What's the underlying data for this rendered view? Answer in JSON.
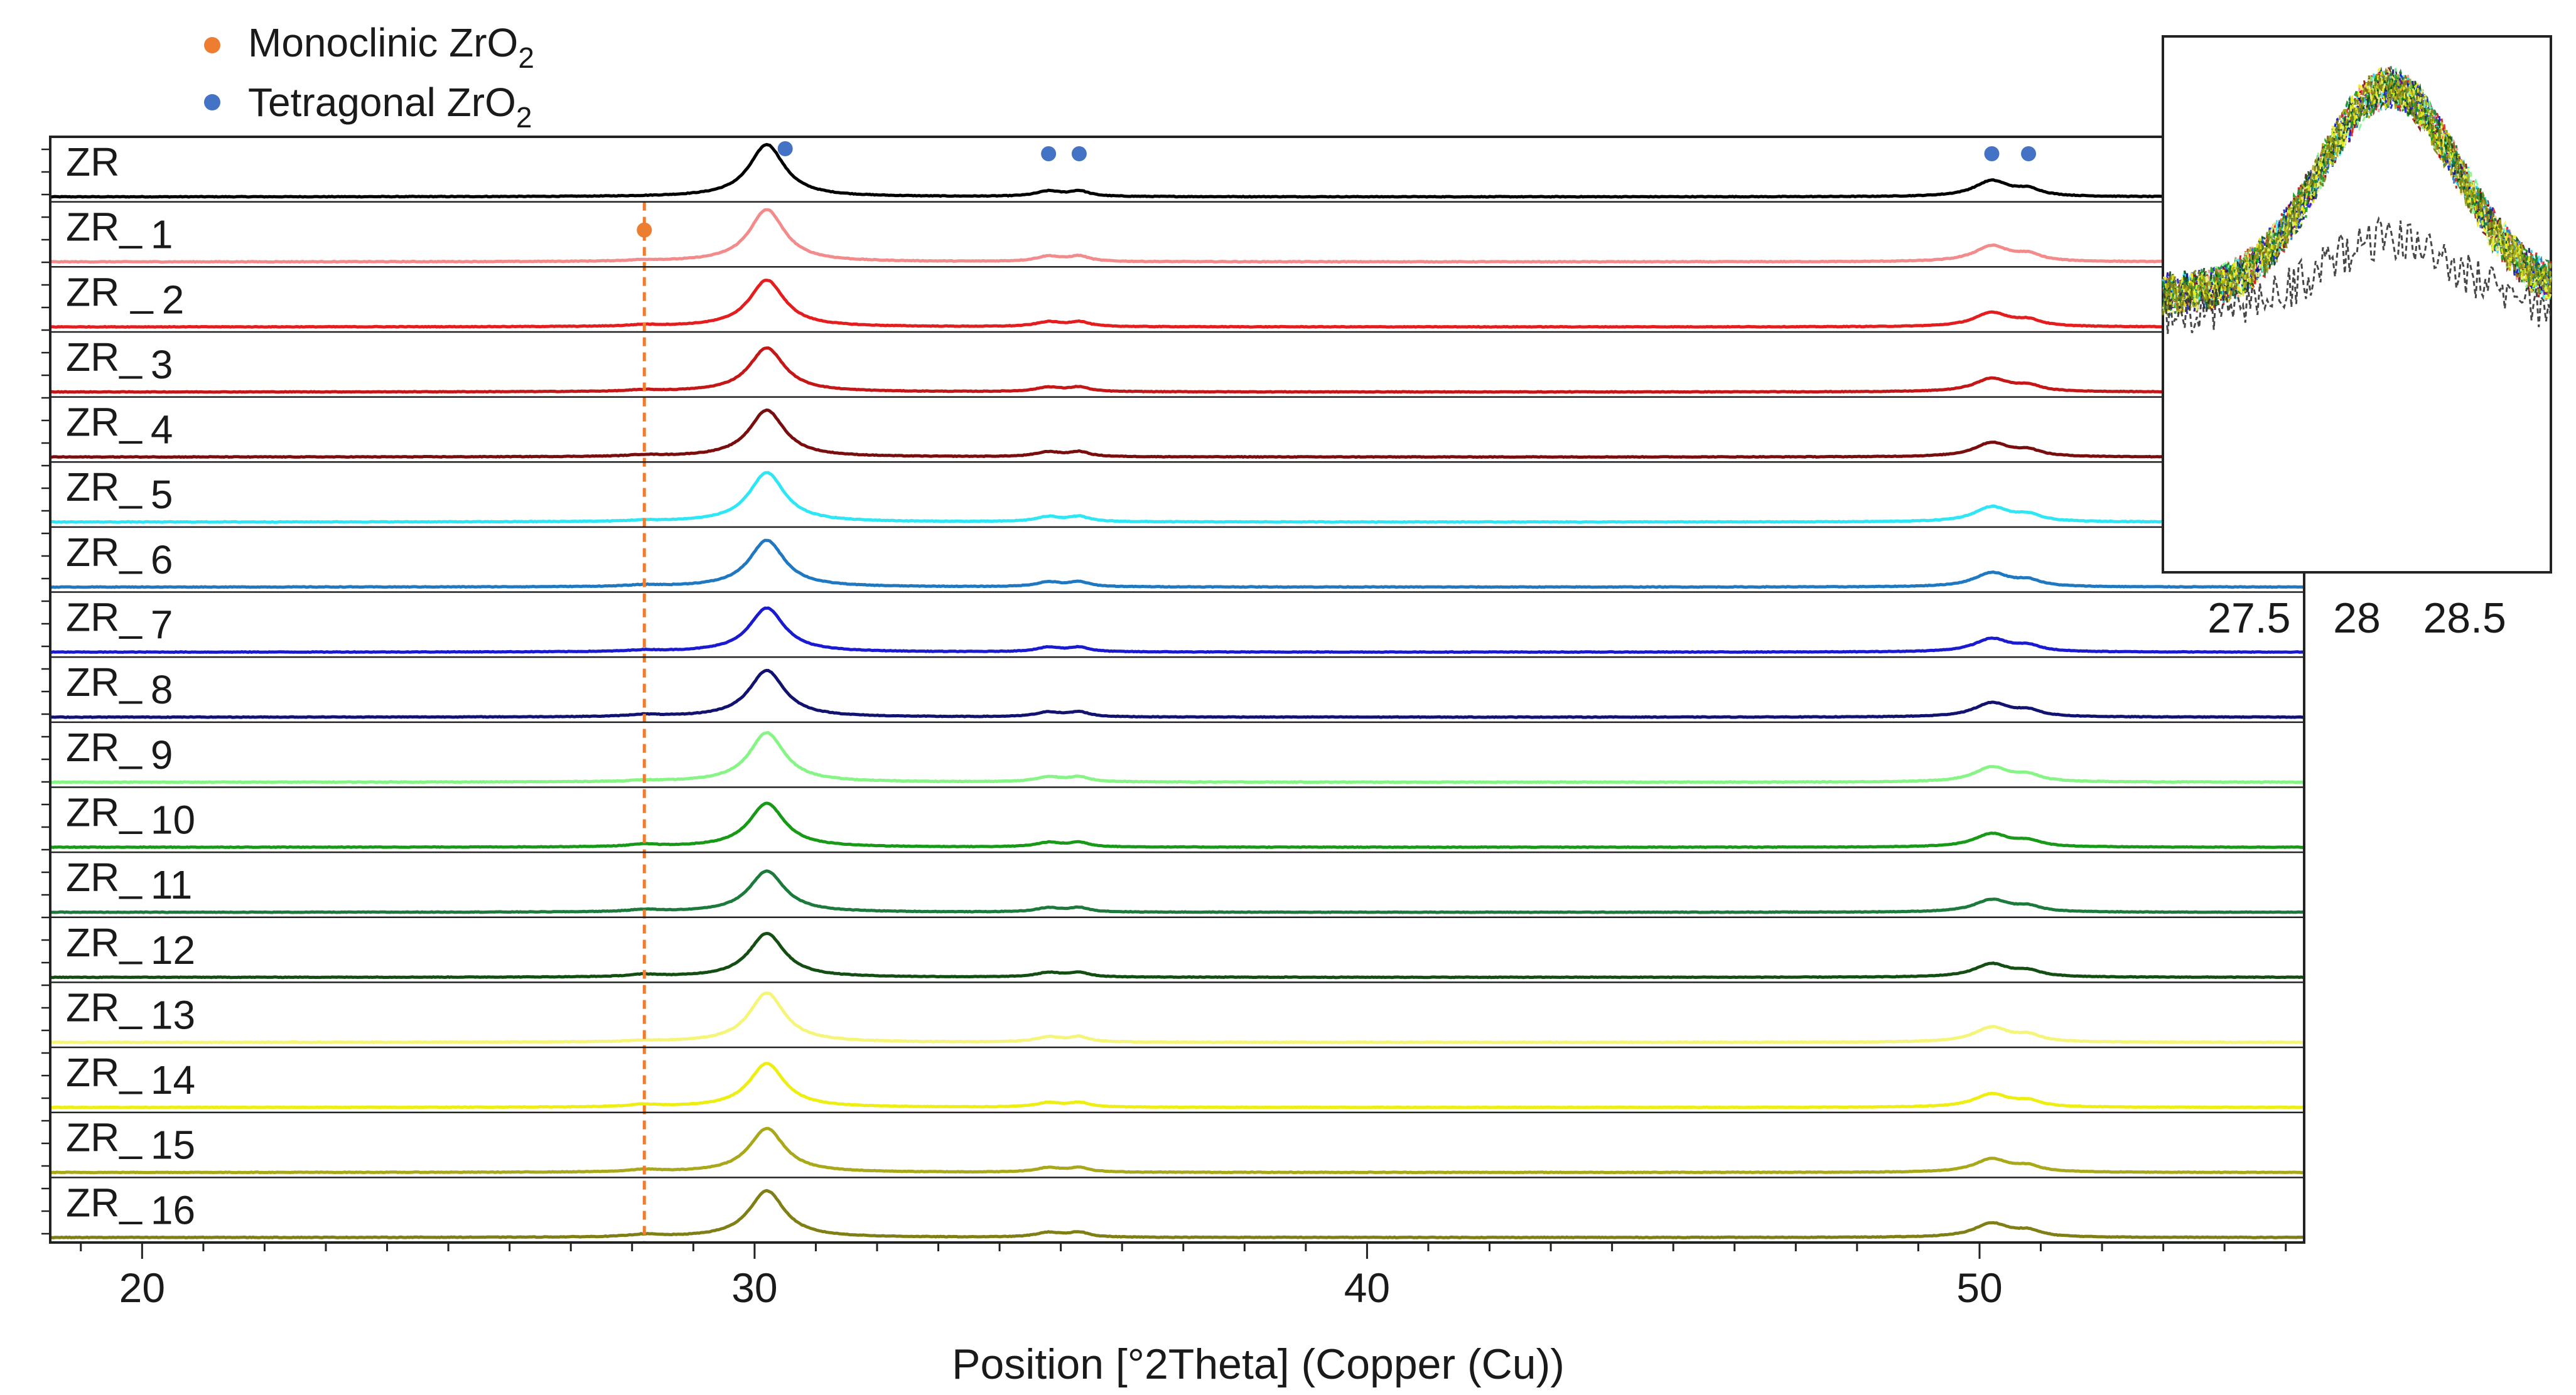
{
  "chart_data": [
    {
      "type": "line",
      "subtype": "stacked-xrd-patterns",
      "title": "",
      "xlabel": "Position [°2Theta] (Copper (Cu))",
      "ylabel": "",
      "xlim": [
        18.5,
        55.3
      ],
      "x_ticks": [
        20,
        30,
        40,
        50
      ],
      "x_tick_labels": [
        "20",
        "30",
        "40",
        "50"
      ],
      "legend": {
        "position": "top-left",
        "entries": [
          {
            "name": "Monoclinic ZrO",
            "subscript": "2",
            "color": "#ED7D31"
          },
          {
            "name": "Tetragonal ZrO",
            "subscript": "2",
            "color": "#4472C4"
          }
        ]
      },
      "peaks_two_theta": [
        30.2,
        34.8,
        35.3,
        50.2,
        50.8
      ],
      "peak_relative_heights": [
        1.0,
        0.1,
        0.1,
        0.3,
        0.12
      ],
      "monoclinic_reference_line": 28.2,
      "tetragonal_markers": [
        {
          "sample": "ZR",
          "x": 30.5
        },
        {
          "sample": "ZR",
          "x": 34.8
        },
        {
          "sample": "ZR",
          "x": 35.3
        },
        {
          "sample": "ZR",
          "x": 50.2
        },
        {
          "sample": "ZR",
          "x": 50.8
        }
      ],
      "monoclinic_markers": [
        {
          "sample": "ZR_ 1",
          "x": 28.2
        }
      ],
      "series": [
        {
          "name": "ZR",
          "label_main": "ZR",
          "label_num": "",
          "color": "#000000",
          "peak_height": 0.95,
          "mono": 0.0
        },
        {
          "name": "ZR_ 1",
          "label_main": "ZR_",
          "label_num": "1",
          "color": "#F28B8B",
          "peak_height": 0.95,
          "mono": 0.02
        },
        {
          "name": "ZR _2",
          "label_main": "ZR _",
          "label_num": "2",
          "color": "#E41E1E",
          "peak_height": 0.85,
          "mono": 0.03
        },
        {
          "name": "ZR_ 3",
          "label_main": "ZR_",
          "label_num": "3",
          "color": "#C41818",
          "peak_height": 0.8,
          "mono": 0.03
        },
        {
          "name": "ZR_ 4",
          "label_main": "ZR_",
          "label_num": "4",
          "color": "#7A0E0E",
          "peak_height": 0.85,
          "mono": 0.03
        },
        {
          "name": "ZR_ 5",
          "label_main": "ZR_",
          "label_num": "5",
          "color": "#2FE6F5",
          "peak_height": 0.9,
          "mono": 0.02
        },
        {
          "name": "ZR_ 6",
          "label_main": "ZR_",
          "label_num": "6",
          "color": "#1F78C0",
          "peak_height": 0.85,
          "mono": 0.03
        },
        {
          "name": "ZR_ 7",
          "label_main": "ZR_",
          "label_num": "7",
          "color": "#1A1AD0",
          "peak_height": 0.8,
          "mono": 0.03
        },
        {
          "name": "ZR_ 8",
          "label_main": "ZR_",
          "label_num": "8",
          "color": "#121270",
          "peak_height": 0.85,
          "mono": 0.04
        },
        {
          "name": "ZR_ 9",
          "label_main": "ZR_",
          "label_num": "9",
          "color": "#86F586",
          "peak_height": 0.9,
          "mono": 0.02
        },
        {
          "name": "ZR_ 10",
          "label_main": "ZR_",
          "label_num": "10",
          "color": "#189A18",
          "peak_height": 0.8,
          "mono": 0.05
        },
        {
          "name": "ZR_ 11",
          "label_main": "ZR_",
          "label_num": "11",
          "color": "#1C7A3C",
          "peak_height": 0.75,
          "mono": 0.05
        },
        {
          "name": "ZR_ 12",
          "label_main": "ZR_",
          "label_num": "12",
          "color": "#134E13",
          "peak_height": 0.8,
          "mono": 0.05
        },
        {
          "name": "ZR_ 13",
          "label_main": "ZR_",
          "label_num": "13",
          "color": "#F5F57A",
          "peak_height": 0.9,
          "mono": 0.02
        },
        {
          "name": "ZR_ 14",
          "label_main": "ZR_",
          "label_num": "14",
          "color": "#EEEE12",
          "peak_height": 0.8,
          "mono": 0.05
        },
        {
          "name": "ZR_ 15",
          "label_main": "ZR_",
          "label_num": "15",
          "color": "#A8A81A",
          "peak_height": 0.8,
          "mono": 0.05
        },
        {
          "name": "ZR_ 16",
          "label_main": "ZR_",
          "label_num": "16",
          "color": "#7F7F16",
          "peak_height": 0.85,
          "mono": 0.05
        }
      ]
    },
    {
      "type": "line",
      "subtype": "inset-zoom",
      "title": "",
      "xlim": [
        27.1,
        28.9
      ],
      "x_ticks": [
        27.5,
        28,
        28.5
      ],
      "x_tick_labels": [
        "27.5",
        "28",
        "28.5"
      ],
      "peak_center": 28.15,
      "series_colors": [
        "#F28B8B",
        "#E41E1E",
        "#C41818",
        "#7A0E0E",
        "#2FE6F5",
        "#1F78C0",
        "#1A1AD0",
        "#121270",
        "#86F586",
        "#189A18",
        "#1C7A3C",
        "#134E13",
        "#F5F57A",
        "#EEEE12",
        "#A8A81A",
        "#7F7F16",
        "#333333"
      ]
    }
  ]
}
